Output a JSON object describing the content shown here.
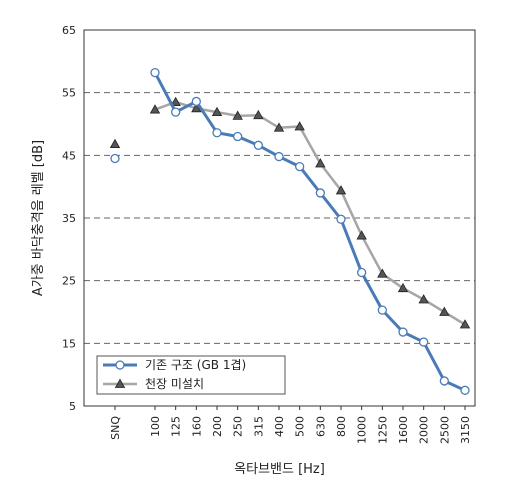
{
  "chart_data": {
    "type": "line",
    "title": "",
    "xlabel": "옥타브밴드 [Hz]",
    "ylabel": "A가중 바닥충격음 레벨 [dB]",
    "ylim": [
      5,
      65
    ],
    "yticks": [
      "5",
      "15",
      "25",
      "35",
      "45",
      "55",
      "65"
    ],
    "grid": "horizontal-dashed",
    "legend": "bottom-left",
    "categories": [
      "SNQ",
      "100",
      "125",
      "160",
      "200",
      "250",
      "315",
      "400",
      "500",
      "630",
      "800",
      "1000",
      "1250",
      "1600",
      "2000",
      "2500",
      "3150"
    ],
    "series": [
      {
        "name": "기존 구조 (GB 1겹)",
        "color": "#4a7bb7",
        "marker": "circle",
        "values": [
          44.5,
          58.2,
          51.9,
          53.6,
          48.6,
          48.0,
          46.6,
          44.8,
          43.2,
          39.0,
          34.8,
          26.3,
          20.3,
          16.8,
          15.2,
          9.0,
          7.5
        ]
      },
      {
        "name": "천장 미설치",
        "color": "#a6a6a6",
        "marker": "triangle",
        "values": [
          46.8,
          52.3,
          53.5,
          52.5,
          51.9,
          51.3,
          51.4,
          49.4,
          49.6,
          43.7,
          39.4,
          32.2,
          26.1,
          23.8,
          22.0,
          20.0,
          18.0
        ]
      }
    ]
  }
}
